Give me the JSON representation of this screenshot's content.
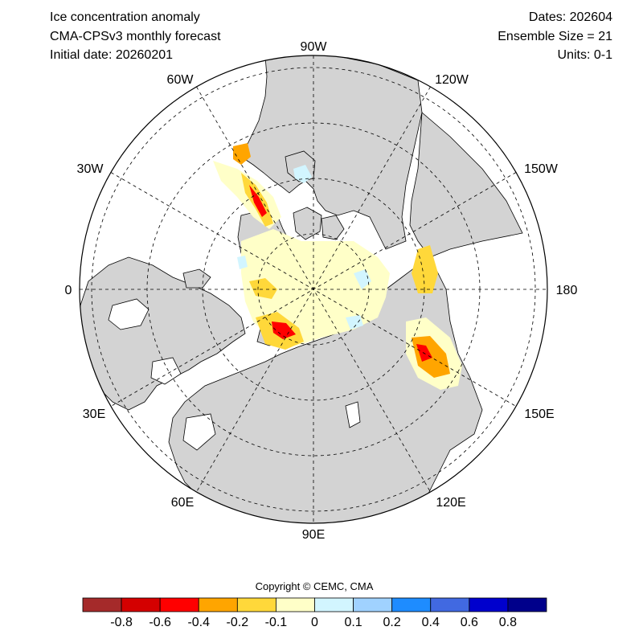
{
  "header": {
    "title": "Ice concentration anomaly",
    "model": "CMA-CPSv3 monthly forecast",
    "initial_date": "Initial date: 20260201",
    "dates": "Dates: 202604",
    "ensemble": "Ensemble Size = 21",
    "units": "Units: 0-1"
  },
  "map": {
    "projection": "north-polar-stereographic",
    "longitude_labels": [
      "90W",
      "120W",
      "150W",
      "180",
      "150E",
      "120E",
      "90E",
      "60E",
      "30E",
      "0",
      "30W",
      "60W"
    ],
    "colors": {
      "land": "#d3d3d3",
      "ocean": "#ffffff",
      "coast": "#000000",
      "grid": "#000000"
    }
  },
  "copyright": "Copyright © CEMC, CMA",
  "legend": {
    "colors": [
      "#a52a2a",
      "#d40000",
      "#ff0000",
      "#ffa500",
      "#ffd83a",
      "#ffffc8",
      "#d2f5ff",
      "#a0d2ff",
      "#1e8cff",
      "#4169e1",
      "#0000cd",
      "#00008b"
    ],
    "tick_labels": [
      "-0.8",
      "-0.6",
      "-0.4",
      "-0.2",
      "-0.1",
      "0",
      "0.1",
      "0.2",
      "0.4",
      "0.6",
      "0.8"
    ]
  }
}
